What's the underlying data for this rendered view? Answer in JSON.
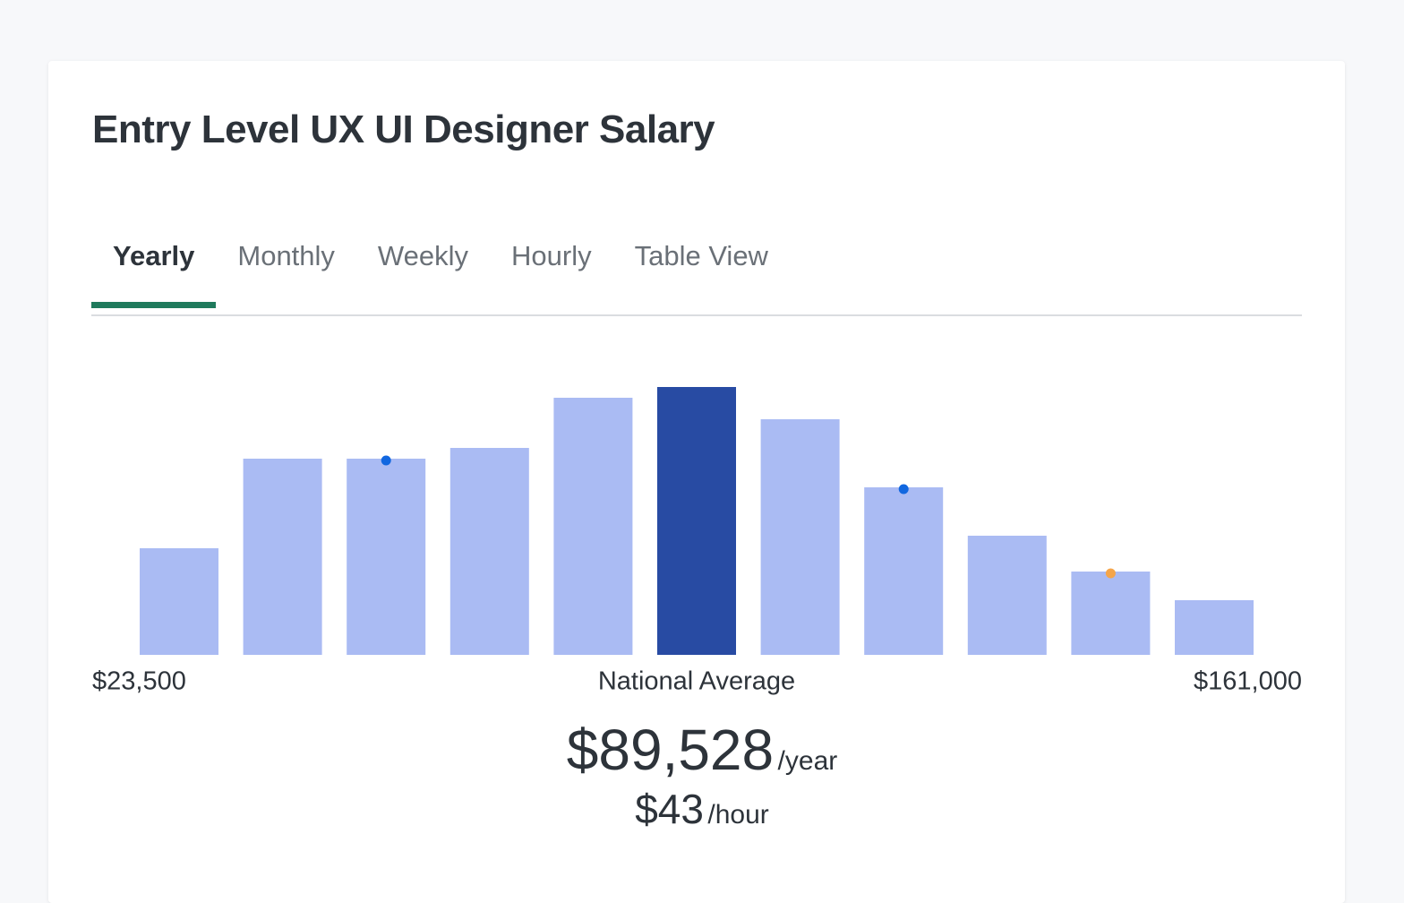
{
  "header": {
    "title": "Entry Level UX UI Designer Salary"
  },
  "tabs": [
    {
      "label": "Yearly",
      "active": true
    },
    {
      "label": "Monthly",
      "active": false
    },
    {
      "label": "Weekly",
      "active": false
    },
    {
      "label": "Hourly",
      "active": false
    },
    {
      "label": "Table View",
      "active": false
    }
  ],
  "chart_data": {
    "type": "bar",
    "values": [
      119,
      219,
      219,
      231,
      287,
      299,
      263,
      187,
      133,
      93,
      61
    ],
    "colors": [
      "#aabbf3",
      "#aabbf3",
      "#aabbf3",
      "#aabbf3",
      "#aabbf3",
      "#284ba3",
      "#aabbf3",
      "#aabbf3",
      "#aabbf3",
      "#aabbf3",
      "#aabbf3"
    ],
    "dot_colors": [
      null,
      null,
      "#1167e0",
      null,
      null,
      null,
      null,
      "#1167e0",
      null,
      "#f5a54a",
      null
    ],
    "min_label": "$23,500",
    "center_label": "National Average",
    "max_label": "$161,000"
  },
  "summary": {
    "yearly": "$89,528",
    "yearly_unit": "/year",
    "hourly": "$43",
    "hourly_unit": "/hour"
  }
}
